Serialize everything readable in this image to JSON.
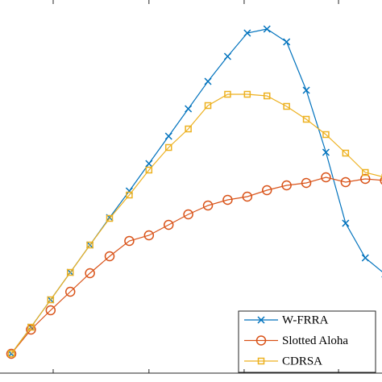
{
  "chart_data": {
    "type": "line",
    "x": [
      0,
      1,
      2,
      3,
      4,
      5,
      6,
      7,
      8,
      9,
      10,
      11,
      12,
      13,
      14,
      15,
      16,
      17,
      18,
      19
    ],
    "xlim": [
      -0.574,
      18.85
    ],
    "xticks": [
      2.13,
      7,
      11.84,
      16.64
    ],
    "ylim": [
      0,
      47.4
    ],
    "legend": "lower right",
    "series": [
      {
        "name": "W-FRRA",
        "color": "#0072bd",
        "marker": "x",
        "values": [
          3.5,
          6.8,
          10.2,
          13.6,
          17,
          20.4,
          23.7,
          27.1,
          30.5,
          33.9,
          37.3,
          40.4,
          43.3,
          43.8,
          42.2,
          36.2,
          28.5,
          19.7,
          15.4,
          13.4
        ]
      },
      {
        "name": "Slotted Aloha",
        "color": "#d95319",
        "marker": "o",
        "values": [
          3.5,
          6.5,
          8.9,
          11.2,
          13.5,
          15.6,
          17.5,
          18.2,
          19.5,
          20.8,
          21.9,
          22.6,
          23,
          23.8,
          24.4,
          24.7,
          25.4,
          24.8,
          25.2,
          25
        ]
      },
      {
        "name": "CDRSA",
        "color": "#edb120",
        "marker": "s",
        "values": [
          3.5,
          6.8,
          10.2,
          13.6,
          17,
          20.3,
          23.2,
          26.3,
          29.1,
          31.4,
          34.3,
          35.7,
          35.7,
          35.5,
          34.2,
          32.6,
          30.7,
          28.4,
          26,
          25.4
        ]
      }
    ]
  }
}
